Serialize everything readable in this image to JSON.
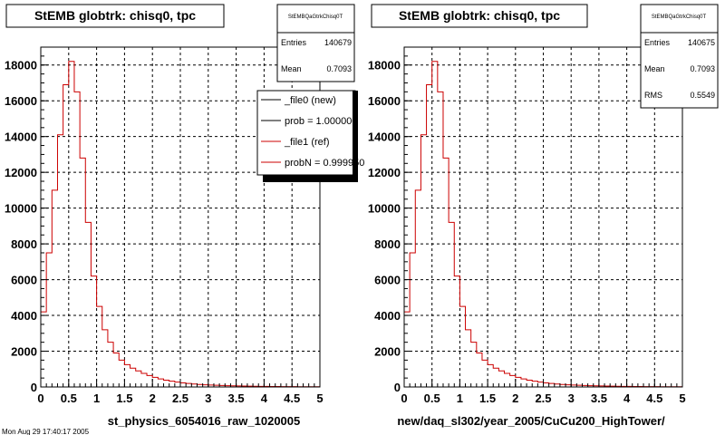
{
  "chart_data": [
    {
      "type": "histogram",
      "title": "StEMB globtrk: chisq0, tpc",
      "xlabel": "st_physics_6054016_raw_1020005",
      "xlim": [
        0,
        5
      ],
      "ylim": [
        0,
        19000
      ],
      "grid": true,
      "x_ticks": [
        "0",
        "0.5",
        "1",
        "1.5",
        "2",
        "2.5",
        "3",
        "3.5",
        "4",
        "4.5",
        "5"
      ],
      "y_ticks": [
        "0",
        "2000",
        "4000",
        "6000",
        "8000",
        "10000",
        "12000",
        "14000",
        "16000",
        "18000"
      ],
      "bin_width": 0.1,
      "series": [
        {
          "color": "#cc0000",
          "values": [
            4200,
            7500,
            11000,
            14100,
            16900,
            18200,
            16500,
            12800,
            9200,
            6200,
            4500,
            3200,
            2500,
            1900,
            1500,
            1250,
            1050,
            900,
            760,
            640,
            540,
            450,
            380,
            320,
            270,
            230,
            195,
            165,
            140,
            120,
            105,
            92,
            80,
            70,
            62,
            55,
            48,
            42,
            37,
            33,
            29,
            26,
            23,
            20,
            18,
            16,
            14,
            12,
            11,
            10
          ]
        }
      ],
      "stats": {
        "name": "StEMBQaGtrkChisq0T",
        "entries_label": "Entries",
        "entries": "140679",
        "mean_label": "Mean",
        "mean": "0.7093"
      },
      "legend": [
        {
          "label": "_file0 (new)",
          "color": "#000000"
        },
        {
          "label": "prob = 1.000000",
          "color": "#000000"
        },
        {
          "label": "_file1 (ref)",
          "color": "#cc0000"
        },
        {
          "label": "probN = 0.999950",
          "color": "#cc0000"
        }
      ]
    },
    {
      "type": "histogram",
      "title": "StEMB globtrk: chisq0, tpc",
      "xlabel": "new/daq_sl302/year_2005/CuCu200_HighTower/",
      "xlim": [
        0,
        5
      ],
      "ylim": [
        0,
        19000
      ],
      "grid": true,
      "x_ticks": [
        "0",
        "0.5",
        "1",
        "1.5",
        "2",
        "2.5",
        "3",
        "3.5",
        "4",
        "4.5",
        "5"
      ],
      "y_ticks": [
        "0",
        "2000",
        "4000",
        "6000",
        "8000",
        "10000",
        "12000",
        "14000",
        "16000",
        "18000"
      ],
      "bin_width": 0.1,
      "series": [
        {
          "color": "#cc0000",
          "values": [
            4200,
            7500,
            11000,
            14100,
            16900,
            18200,
            16500,
            12800,
            9200,
            6200,
            4500,
            3200,
            2500,
            1900,
            1500,
            1250,
            1050,
            900,
            760,
            640,
            540,
            450,
            380,
            320,
            270,
            230,
            195,
            165,
            140,
            120,
            105,
            92,
            80,
            70,
            62,
            55,
            48,
            42,
            37,
            33,
            29,
            26,
            23,
            20,
            18,
            16,
            14,
            12,
            11,
            10
          ]
        }
      ],
      "stats": {
        "name": "StEMBQaGtrkChisq0T",
        "entries_label": "Entries",
        "entries": "140675",
        "mean_label": "Mean",
        "mean": "0.7093",
        "rms_label": "RMS",
        "rms": "0.5549"
      }
    }
  ],
  "footer_text": "Mon Aug 29 17:40:17 2005"
}
